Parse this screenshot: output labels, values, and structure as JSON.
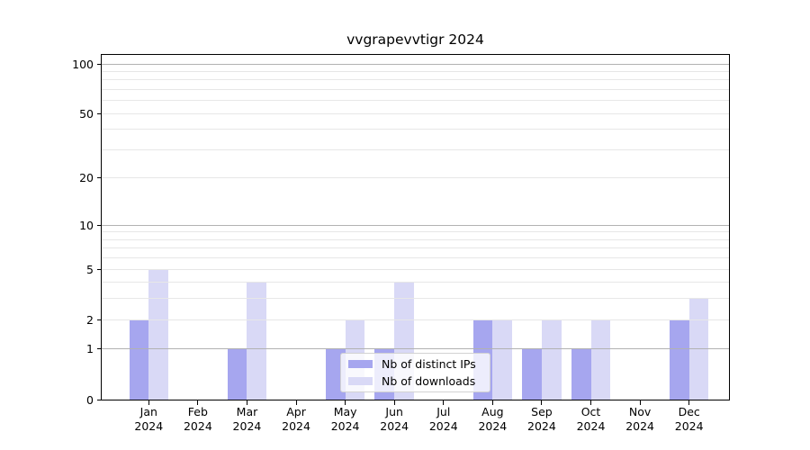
{
  "chart_data": {
    "type": "bar",
    "title": "vvgrapevvtigr 2024",
    "categories": [
      "Jan",
      "Feb",
      "Mar",
      "Apr",
      "May",
      "Jun",
      "Jul",
      "Aug",
      "Sep",
      "Oct",
      "Nov",
      "Dec"
    ],
    "x_year_label": "2024",
    "series": [
      {
        "name": "Nb of distinct IPs",
        "color": "#a6a6ef",
        "values": [
          2,
          0,
          1,
          0,
          1,
          1,
          0,
          2,
          1,
          1,
          0,
          2
        ]
      },
      {
        "name": "Nb of downloads",
        "color": "#d9d9f6",
        "values": [
          5,
          0,
          4,
          0,
          2,
          4,
          0,
          2,
          2,
          2,
          0,
          3
        ]
      }
    ],
    "xlabel": "",
    "ylabel": "",
    "y_axis": {
      "scale": "log1p",
      "tick_labels": [
        "0",
        "1",
        "2",
        "5",
        "10",
        "20",
        "50",
        "100"
      ],
      "ticks": [
        0,
        1,
        2,
        5,
        10,
        20,
        50,
        100
      ],
      "major_grid": [
        1,
        10,
        100
      ],
      "minor_grid": [
        2,
        3,
        4,
        5,
        6,
        7,
        8,
        9,
        20,
        30,
        40,
        50,
        60,
        70,
        80,
        90
      ],
      "ylim": [
        0,
        114
      ],
      "grid": true
    },
    "legend": {
      "position": "lower center"
    }
  },
  "colors": {
    "grid_major": "#b2b2b2",
    "grid_minor": "#e7e7e7",
    "spine": "#000000",
    "text": "#000000",
    "background": "#ffffff",
    "legend_border": "#d2d2d2"
  }
}
